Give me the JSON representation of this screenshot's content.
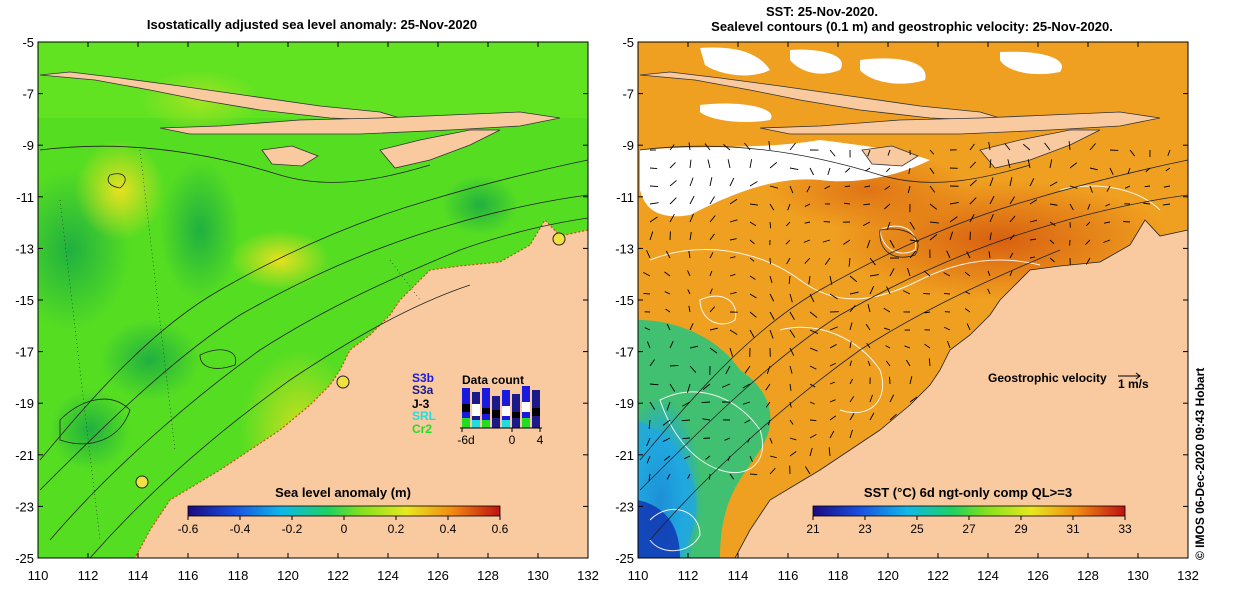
{
  "left_panel": {
    "title": "Isostatically adjusted sea level anomaly: 25-Nov-2020",
    "colorbar": {
      "label": "Sea level anomaly (m)",
      "ticks": [
        "-0.6",
        "-0.4",
        "-0.2",
        "0",
        "0.2",
        "0.4",
        "0.6"
      ],
      "range": [
        -0.6,
        0.6
      ]
    },
    "data_count": {
      "title": "Data count",
      "satellites": [
        {
          "name": "S3b",
          "color": "#1a1adc"
        },
        {
          "name": "S3a",
          "color": "#1a1a88"
        },
        {
          "name": "J-3",
          "color": "#000000"
        },
        {
          "name": "SRL",
          "color": "#22dddd"
        },
        {
          "name": "Cr2",
          "color": "#22dd22"
        }
      ],
      "x_ticks": [
        "-6d",
        "0",
        "4"
      ]
    }
  },
  "right_panel": {
    "title_line1": "SST: 25-Nov-2020.",
    "title_line2": "Sealevel contours (0.1 m) and geostrophic velocity: 25-Nov-2020.",
    "colorbar": {
      "label": "SST (°C) 6d ngt-only comp QL>=3",
      "ticks": [
        "21",
        "23",
        "25",
        "27",
        "29",
        "31",
        "33"
      ],
      "range": [
        21,
        33
      ]
    },
    "velocity_legend": {
      "label": "Geostrophic velocity",
      "scale": "1 m/s"
    }
  },
  "axes": {
    "lon_ticks": [
      "110",
      "112",
      "114",
      "116",
      "118",
      "120",
      "122",
      "124",
      "126",
      "128",
      "130",
      "132"
    ],
    "lat_ticks": [
      "-5",
      "-7",
      "-9",
      "-11",
      "-13",
      "-15",
      "-17",
      "-19",
      "-21",
      "-23",
      "-25"
    ],
    "lon_range": [
      110,
      132
    ],
    "lat_range": [
      -25,
      -5
    ]
  },
  "credit": "© IMOS 06-Dec-2020 09:43 Hobart",
  "colors": {
    "land": "#f9c9a0",
    "sla_background": "#55dd22",
    "sst_background": "#f0a020"
  }
}
